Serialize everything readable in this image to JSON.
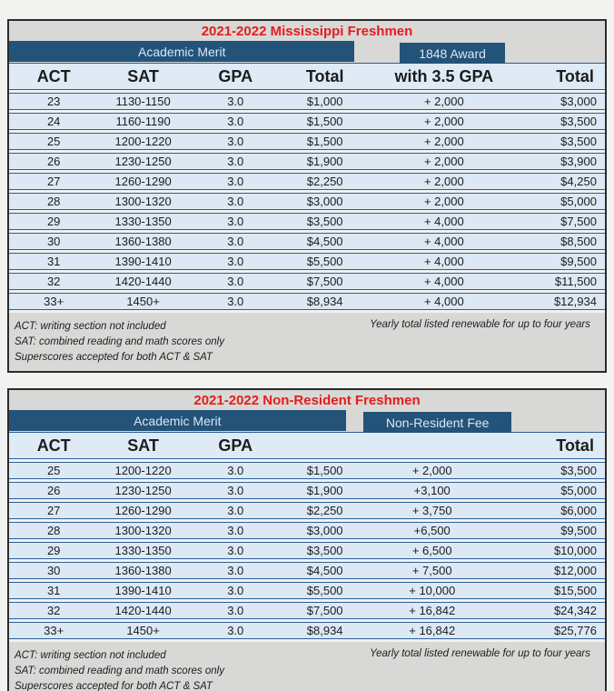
{
  "colors": {
    "page_bg": "#F2F2F0",
    "dark_blue": "#235379",
    "bar_text": "#D9E7F5",
    "row_blue": "#DCE9F5",
    "header_blue": "#DEEBF7",
    "row_line": "#2F5F93",
    "gray_band": "#D8D8D6",
    "title_red": "#E21D1D",
    "table_border": "#2B2B2B",
    "text": "#1C1C1C"
  },
  "tables": [
    {
      "title": "2021-2022 Mississippi Freshmen",
      "merit_label": "Academic Merit",
      "award_label": "1848 Award",
      "headers": [
        "ACT",
        "SAT",
        "GPA",
        "Total",
        "with 3.5 GPA",
        "Total"
      ],
      "rows": [
        [
          "23",
          "1130-1150",
          "3.0",
          "$1,000",
          "+ 2,000",
          "$3,000"
        ],
        [
          "24",
          "1160-1190",
          "3.0",
          "$1,500",
          "+ 2,000",
          "$3,500"
        ],
        [
          "25",
          "1200-1220",
          "3.0",
          "$1,500",
          "+ 2,000",
          "$3,500"
        ],
        [
          "26",
          "1230-1250",
          "3.0",
          "$1,900",
          "+ 2,000",
          "$3,900"
        ],
        [
          "27",
          "1260-1290",
          "3.0",
          "$2,250",
          "+ 2,000",
          "$4,250"
        ],
        [
          "28",
          "1300-1320",
          "3.0",
          "$3,000",
          "+ 2,000",
          "$5,000"
        ],
        [
          "29",
          "1330-1350",
          "3.0",
          "$3,500",
          "+ 4,000",
          "$7,500"
        ],
        [
          "30",
          "1360-1380",
          "3.0",
          "$4,500",
          "+ 4,000",
          "$8,500"
        ],
        [
          "31",
          "1390-1410",
          "3.0",
          "$5,500",
          "+ 4,000",
          "$9,500"
        ],
        [
          "32",
          "1420-1440",
          "3.0",
          "$7,500",
          "+ 4,000",
          "$11,500"
        ],
        [
          "33+",
          "1450+",
          "3.0",
          "$8,934",
          "+ 4,000",
          "$12,934"
        ]
      ],
      "footnotes_left": [
        "ACT: writing section not included",
        "SAT: combined reading and math scores only",
        "Superscores accepted for both ACT & SAT"
      ],
      "footnote_right": "Yearly total listed renewable for up to four years"
    },
    {
      "title": "2021-2022 Non-Resident Freshmen",
      "merit_label": "Academic Merit",
      "award_label": "Non-Resident Fee",
      "headers": [
        "ACT",
        "SAT",
        "GPA",
        "",
        "",
        "Total"
      ],
      "rows": [
        [
          "25",
          "1200-1220",
          "3.0",
          "$1,500",
          "+ 2,000",
          "$3,500"
        ],
        [
          "26",
          "1230-1250",
          "3.0",
          "$1,900",
          "+3,100",
          "$5,000"
        ],
        [
          "27",
          "1260-1290",
          "3.0",
          "$2,250",
          "+ 3,750",
          "$6,000"
        ],
        [
          "28",
          "1300-1320",
          "3.0",
          "$3,000",
          "+6,500",
          "$9,500"
        ],
        [
          "29",
          "1330-1350",
          "3.0",
          "$3,500",
          "+ 6,500",
          "$10,000"
        ],
        [
          "30",
          "1360-1380",
          "3.0",
          "$4,500",
          "+ 7,500",
          "$12,000"
        ],
        [
          "31",
          "1390-1410",
          "3.0",
          "$5,500",
          "+ 10,000",
          "$15,500"
        ],
        [
          "32",
          "1420-1440",
          "3.0",
          "$7,500",
          "+ 16,842",
          "$24,342"
        ],
        [
          "33+",
          "1450+",
          "3.0",
          "$8,934",
          "+ 16,842",
          "$25,776"
        ]
      ],
      "footnotes_left": [
        "ACT: writing section not included",
        "SAT: combined reading and math scores only",
        "Superscores accepted for both ACT & SAT"
      ],
      "footnote_right": "Yearly total listed renewable for up to four years"
    }
  ]
}
